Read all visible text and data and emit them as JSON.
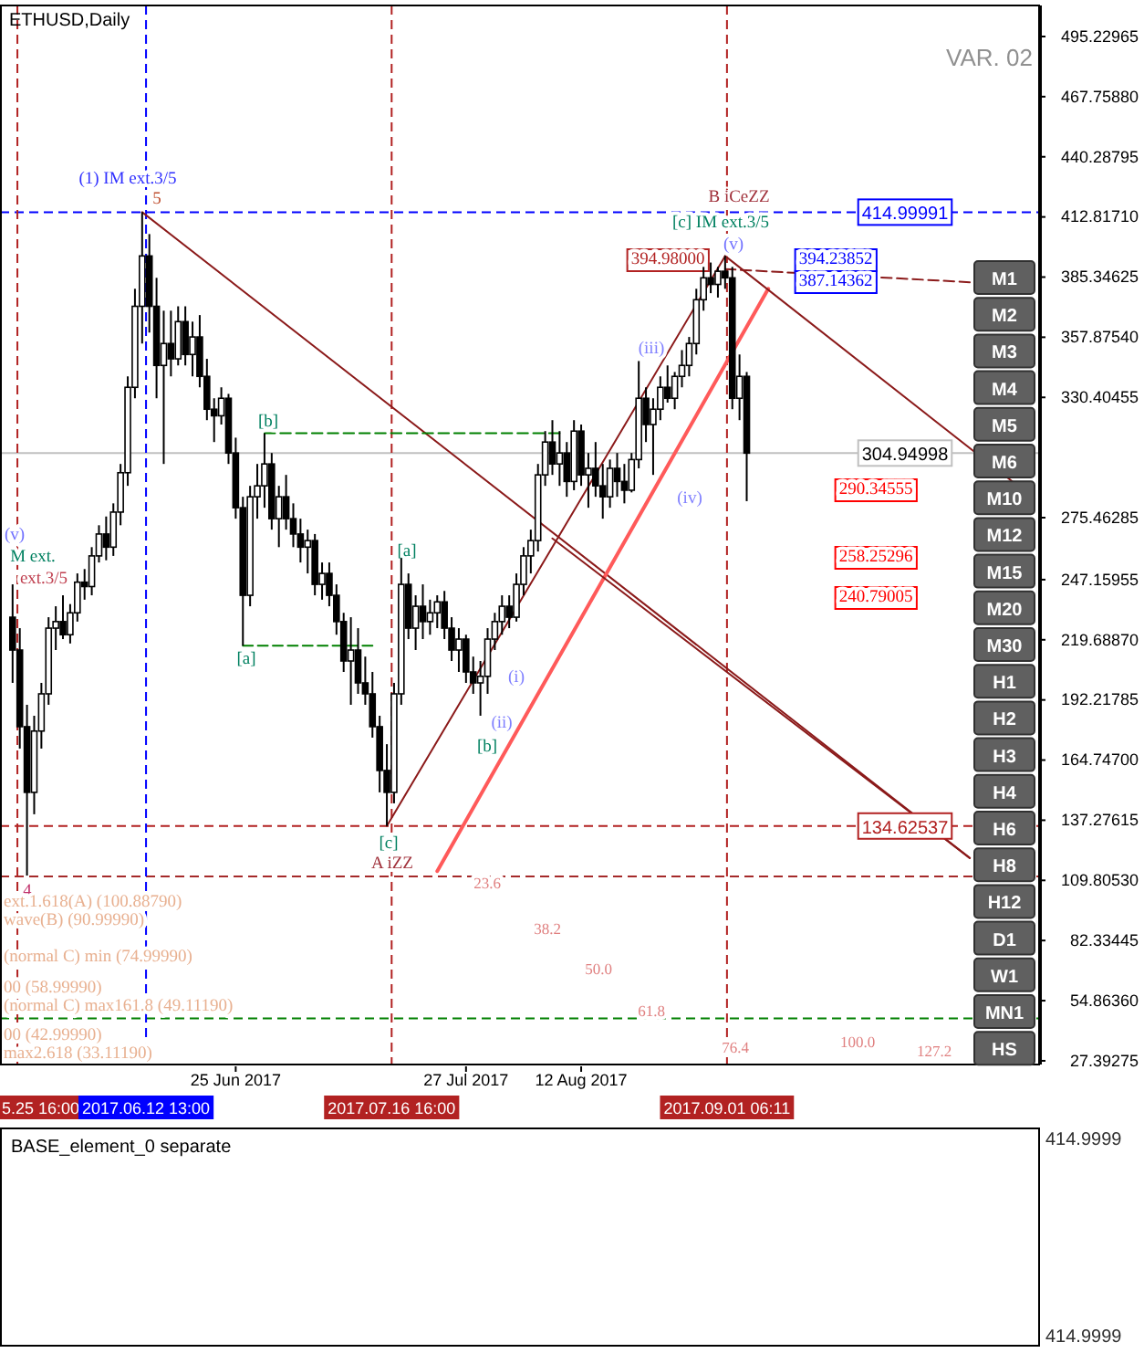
{
  "chart_data": [
    {
      "type": "candlestick",
      "title": "ETHUSD,Daily",
      "x": [
        "2017-05-25",
        "2017-05-26",
        "2017-05-27",
        "2017-05-28",
        "2017-05-29",
        "2017-05-30",
        "2017-05-31",
        "2017-06-01",
        "2017-06-02",
        "2017-06-03",
        "2017-06-04",
        "2017-06-05",
        "2017-06-06",
        "2017-06-07",
        "2017-06-08",
        "2017-06-09",
        "2017-06-10",
        "2017-06-11",
        "2017-06-12",
        "2017-06-13",
        "2017-06-14",
        "2017-06-15",
        "2017-06-16",
        "2017-06-17",
        "2017-06-18",
        "2017-06-19",
        "2017-06-20",
        "2017-06-21",
        "2017-06-22",
        "2017-06-23",
        "2017-06-24",
        "2017-06-25",
        "2017-06-26",
        "2017-06-27",
        "2017-06-28",
        "2017-06-29",
        "2017-06-30",
        "2017-07-01",
        "2017-07-02",
        "2017-07-03",
        "2017-07-04",
        "2017-07-05",
        "2017-07-06",
        "2017-07-07",
        "2017-07-08",
        "2017-07-09",
        "2017-07-10",
        "2017-07-11",
        "2017-07-12",
        "2017-07-13",
        "2017-07-14",
        "2017-07-15",
        "2017-07-16",
        "2017-07-17",
        "2017-07-18",
        "2017-07-19",
        "2017-07-20",
        "2017-07-21",
        "2017-07-22",
        "2017-07-23",
        "2017-07-24",
        "2017-07-25",
        "2017-07-26",
        "2017-07-27",
        "2017-07-28",
        "2017-07-29",
        "2017-07-30",
        "2017-07-31",
        "2017-08-01",
        "2017-08-02",
        "2017-08-03",
        "2017-08-04",
        "2017-08-05",
        "2017-08-06",
        "2017-08-07",
        "2017-08-08",
        "2017-08-09",
        "2017-08-10",
        "2017-08-11",
        "2017-08-12",
        "2017-08-13",
        "2017-08-14",
        "2017-08-15",
        "2017-08-16",
        "2017-08-17",
        "2017-08-18",
        "2017-08-19",
        "2017-08-20",
        "2017-08-21",
        "2017-08-22",
        "2017-08-23",
        "2017-08-24",
        "2017-08-25",
        "2017-08-26",
        "2017-08-27",
        "2017-08-28",
        "2017-08-29",
        "2017-08-30",
        "2017-08-31",
        "2017-09-01",
        "2017-09-02",
        "2017-09-03",
        "2017-09-04"
      ],
      "ohlc": [
        [
          230,
          245,
          200,
          215
        ],
        [
          215,
          225,
          170,
          180
        ],
        [
          180,
          190,
          112,
          150
        ],
        [
          150,
          185,
          140,
          178
        ],
        [
          178,
          200,
          170,
          195
        ],
        [
          195,
          230,
          190,
          225
        ],
        [
          225,
          235,
          215,
          228
        ],
        [
          228,
          240,
          220,
          222
        ],
        [
          222,
          236,
          218,
          232
        ],
        [
          232,
          250,
          228,
          246
        ],
        [
          246,
          252,
          238,
          244
        ],
        [
          244,
          262,
          240,
          258
        ],
        [
          258,
          272,
          255,
          268
        ],
        [
          268,
          276,
          256,
          262
        ],
        [
          262,
          282,
          258,
          278
        ],
        [
          278,
          300,
          272,
          296
        ],
        [
          296,
          340,
          290,
          335
        ],
        [
          335,
          380,
          330,
          372
        ],
        [
          372,
          414.99991,
          355,
          395
        ],
        [
          395,
          405,
          360,
          372
        ],
        [
          372,
          385,
          330,
          345
        ],
        [
          345,
          370,
          300,
          355
        ],
        [
          355,
          370,
          340,
          348
        ],
        [
          348,
          372,
          345,
          365
        ],
        [
          365,
          372,
          345,
          350
        ],
        [
          350,
          365,
          340,
          358
        ],
        [
          358,
          368,
          335,
          340
        ],
        [
          340,
          348,
          320,
          325
        ],
        [
          325,
          330,
          310,
          322
        ],
        [
          322,
          335,
          318,
          330
        ],
        [
          330,
          332,
          300,
          305
        ],
        [
          305,
          312,
          275,
          280
        ],
        [
          280,
          285,
          217,
          240
        ],
        [
          240,
          290,
          235,
          285
        ],
        [
          285,
          300,
          275,
          290
        ],
        [
          290,
          314,
          280,
          300
        ],
        [
          300,
          305,
          270,
          275
        ],
        [
          275,
          290,
          262,
          285
        ],
        [
          285,
          295,
          270,
          275
        ],
        [
          275,
          282,
          262,
          268
        ],
        [
          268,
          275,
          255,
          262
        ],
        [
          262,
          270,
          250,
          265
        ],
        [
          265,
          268,
          240,
          245
        ],
        [
          245,
          255,
          238,
          250
        ],
        [
          250,
          255,
          235,
          240
        ],
        [
          240,
          245,
          222,
          228
        ],
        [
          228,
          232,
          205,
          210
        ],
        [
          210,
          230,
          190,
          215
        ],
        [
          215,
          225,
          195,
          200
        ],
        [
          200,
          212,
          190,
          195
        ],
        [
          195,
          205,
          175,
          180
        ],
        [
          180,
          185,
          150,
          160
        ],
        [
          160,
          172,
          134.62537,
          150
        ],
        [
          150,
          200,
          145,
          195
        ],
        [
          195,
          257,
          190,
          245
        ],
        [
          245,
          250,
          220,
          225
        ],
        [
          225,
          240,
          215,
          235
        ],
        [
          235,
          245,
          220,
          228
        ],
        [
          228,
          238,
          222,
          232
        ],
        [
          232,
          240,
          225,
          237
        ],
        [
          237,
          242,
          220,
          225
        ],
        [
          225,
          230,
          210,
          215
        ],
        [
          215,
          225,
          205,
          220
        ],
        [
          220,
          222,
          200,
          205
        ],
        [
          205,
          212,
          195,
          200
        ],
        [
          200,
          210,
          185,
          203
        ],
        [
          203,
          225,
          195,
          220
        ],
        [
          220,
          232,
          215,
          228
        ],
        [
          228,
          240,
          222,
          235
        ],
        [
          235,
          240,
          225,
          230
        ],
        [
          230,
          250,
          228,
          245
        ],
        [
          245,
          262,
          240,
          258
        ],
        [
          258,
          270,
          250,
          265
        ],
        [
          265,
          300,
          260,
          295
        ],
        [
          295,
          315,
          290,
          310
        ],
        [
          310,
          320,
          295,
          300
        ],
        [
          300,
          315,
          290,
          305
        ],
        [
          305,
          310,
          285,
          292
        ],
        [
          292,
          320,
          288,
          315
        ],
        [
          315,
          318,
          290,
          295
        ],
        [
          295,
          305,
          280,
          298
        ],
        [
          298,
          310,
          285,
          290
        ],
        [
          290,
          300,
          275,
          285
        ],
        [
          285,
          302,
          280,
          298
        ],
        [
          298,
          305,
          285,
          292
        ],
        [
          292,
          300,
          282,
          288
        ],
        [
          288,
          305,
          287,
          302
        ],
        [
          302,
          347,
          298,
          330
        ],
        [
          330,
          335,
          310,
          318
        ],
        [
          318,
          330,
          295,
          325
        ],
        [
          325,
          340,
          320,
          335
        ],
        [
          335,
          345,
          328,
          330
        ],
        [
          330,
          342,
          325,
          340
        ],
        [
          340,
          352,
          335,
          345
        ],
        [
          345,
          358,
          340,
          355
        ],
        [
          355,
          380,
          350,
          375
        ],
        [
          375,
          390,
          370,
          385
        ],
        [
          385,
          392,
          378,
          382
        ],
        [
          382,
          390,
          376,
          388
        ],
        [
          388,
          394.98,
          380,
          385
        ],
        [
          385,
          390,
          325,
          330
        ],
        [
          330,
          350,
          320,
          340
        ],
        [
          340,
          342,
          283,
          304.94998
        ]
      ],
      "series": [
        {
          "type": "line",
          "color": "#8b1a1a",
          "x": [
            "2017-06-12",
            "2017-10-05"
          ],
          "values": [
            414.99991,
            120
          ]
        },
        {
          "type": "line",
          "color": "#8b1a1a",
          "x": [
            "2017-07-16",
            "2017-09-01"
          ],
          "values": [
            134.62537,
            394.98
          ]
        },
        {
          "type": "line",
          "color": "#ff5a5a",
          "x": [
            "2017-07-23",
            "2017-09-07"
          ],
          "values": [
            114,
            380
          ]
        },
        {
          "type": "line",
          "color": "#8b1a1a",
          "x": [
            "2017-09-01",
            "2017-10-14"
          ],
          "values": [
            394.98,
            284
          ]
        },
        {
          "type": "line",
          "color": "#8b1a1a",
          "x": [
            "2017-08-08",
            "2017-10-05"
          ],
          "values": [
            266,
            120
          ]
        },
        {
          "type": "line",
          "color": "#8b1a1a",
          "line_style": "dashed",
          "x": [
            "2017-09-01",
            "2017-10-05"
          ],
          "values": [
            389,
            383
          ]
        },
        {
          "type": "line",
          "color": "#008000",
          "line_style": "dashed",
          "x": [
            "2017-06-29",
            "2017-08-09"
          ],
          "values": [
            314,
            314
          ]
        },
        {
          "type": "line",
          "color": "#008000",
          "line_style": "dashed",
          "x": [
            "2017-06-26",
            "2017-07-14"
          ],
          "values": [
            217,
            217
          ]
        }
      ],
      "xlim": [
        "2017-05-23T06:00",
        "2017-10-14T18:00"
      ],
      "xticks": [
        {
          "value": "2017-06-25",
          "label": "25 Jun 2017"
        },
        {
          "value": "2017-07-27",
          "label": "27 Jul 2017"
        },
        {
          "value": "2017-08-12",
          "label": "12 Aug 2017"
        }
      ],
      "ylim": [
        25.7,
        509.4
      ],
      "yticks": [
        {
          "value": 495.22965,
          "label": "495.22965"
        },
        {
          "value": 467.7588,
          "label": "467.75880"
        },
        {
          "value": 440.28795,
          "label": "440.28795"
        },
        {
          "value": 412.8171,
          "label": "412.81710"
        },
        {
          "value": 385.34625,
          "label": "385.34625"
        },
        {
          "value": 357.8754,
          "label": "357.87540"
        },
        {
          "value": 330.40455,
          "label": "330.40455"
        },
        {
          "value": 275.46285,
          "label": "275.46285"
        },
        {
          "value": 247.15955,
          "label": "247.15955"
        },
        {
          "value": 219.6887,
          "label": "219.68870"
        },
        {
          "value": 192.21785,
          "label": "192.21785"
        },
        {
          "value": 164.747,
          "label": "164.74700"
        },
        {
          "value": 137.27615,
          "label": "137.27615"
        },
        {
          "value": 109.8053,
          "label": "109.80530"
        },
        {
          "value": 82.33445,
          "label": "82.33445"
        },
        {
          "value": 54.8636,
          "label": "54.86360"
        },
        {
          "value": 27.39275,
          "label": "27.39275"
        }
      ],
      "ref_lines": [
        {
          "axis": "y",
          "value": 304.94998,
          "label": "304.94998",
          "color": "#c0c0c0",
          "line_style": "solid"
        },
        {
          "axis": "y",
          "value": 414.99991,
          "label": "414.99991",
          "color": "#0000ff",
          "line_style": "dashed"
        },
        {
          "axis": "y",
          "value": 134.62537,
          "label": "134.62537",
          "color": "#b22222",
          "line_style": "dashed"
        },
        {
          "axis": "y",
          "value": 111.6,
          "color": "#a52a2a",
          "line_style": "dashed"
        },
        {
          "axis": "y",
          "value": 46.8,
          "color": "#008000",
          "line_style": "dashed"
        },
        {
          "axis": "x",
          "value": "2017-05-25T16:00",
          "label": "5.25 16:00",
          "color": "#b22222",
          "line_style": "dashed"
        },
        {
          "axis": "x",
          "value": "2017-06-12T13:00",
          "label": "2017.06.12 13:00",
          "color": "#0000ff",
          "line_style": "dashed"
        },
        {
          "axis": "x",
          "value": "2017-07-16T16:00",
          "label": "2017.07.16 16:00",
          "color": "#b22222",
          "line_style": "dashed"
        },
        {
          "axis": "x",
          "value": "2017-09-01T06:11",
          "label": "2017.09.01 06:11",
          "color": "#b22222",
          "line_style": "dashed"
        }
      ],
      "annotations": [
        "VAR. 02",
        "M1",
        "M2",
        "M3",
        "M4",
        "M5",
        "M6",
        "M10",
        "M12",
        "M15",
        "M20",
        "M30",
        "H1",
        "H2",
        "H3",
        "H4",
        "H6",
        "H8",
        "H12",
        "D1",
        "W1",
        "MN1",
        "HS",
        "(1) IM ext.3/5",
        "5",
        "B iCeZZ",
        "[c] IM ext.3/5",
        "(v)",
        "394.98000",
        "394.23852",
        "387.14362",
        "290.34555",
        "258.25296",
        "240.79005",
        "[b]",
        "[a]",
        "[a]",
        "(iii)",
        "(iv)",
        "(i)",
        "(ii)",
        "[b]",
        "[c]",
        "A iZZ",
        "ext.3/5",
        "M ext.",
        "(v)",
        "4",
        "23.6",
        "38.2",
        "50.0",
        "61.8",
        "76.4",
        "100.0",
        "127.2",
        "ext.1.618(A) (100.88790)",
        "wave(B) (90.99990)",
        "(normal C) min (74.99990)",
        "00 (58.99990)",
        "(normal C) max161.8 (49.11190)",
        "00 (42.99990)",
        "max2.618 (33.11190)"
      ]
    },
    {
      "type": "other",
      "title": "BASE_element_0 separate",
      "annotations": [
        "414.9999",
        "414.9999"
      ]
    }
  ]
}
